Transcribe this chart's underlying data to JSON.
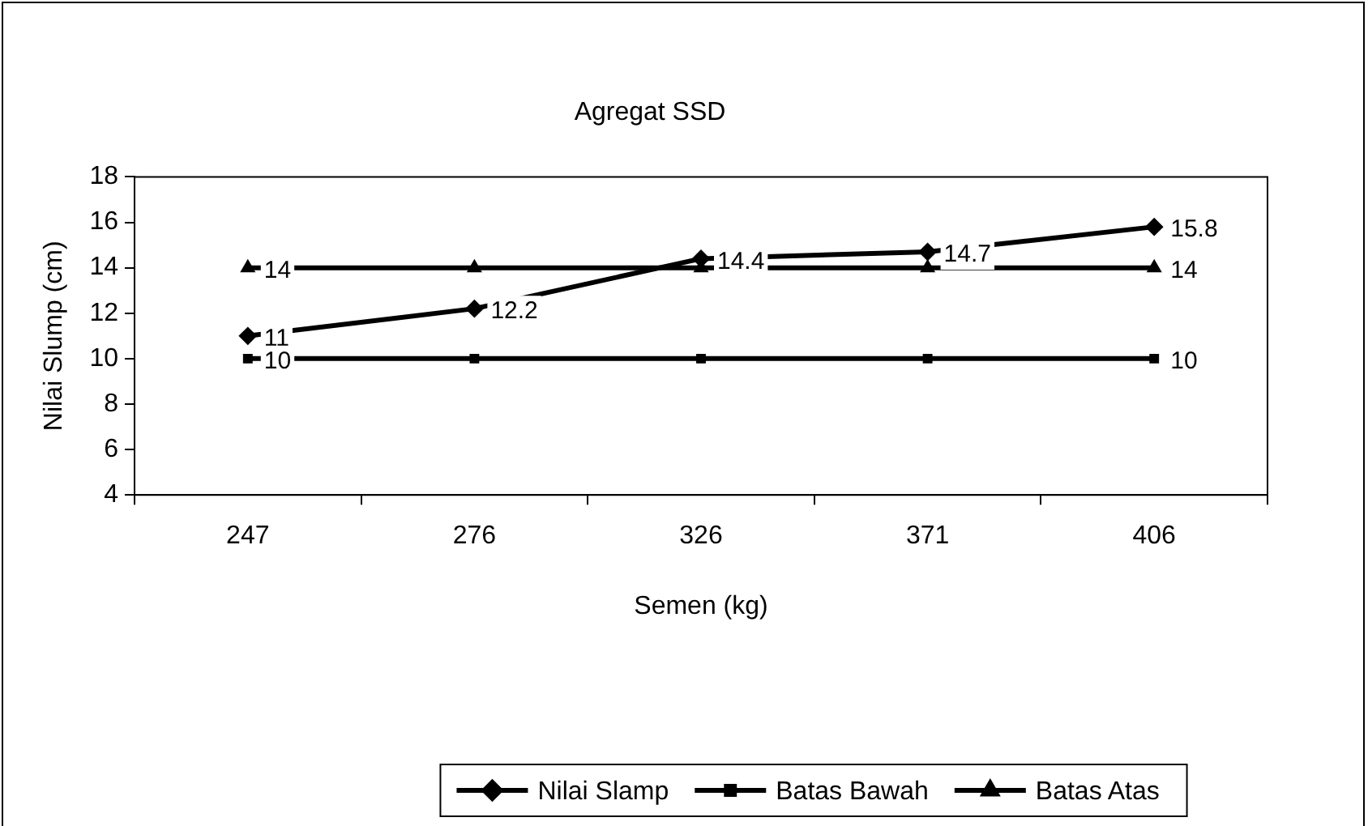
{
  "chart_data": {
    "type": "line",
    "title": "Agregat SSD",
    "xlabel": "Semen (kg)",
    "ylabel": "Nilai Slump (cm)",
    "categories": [
      "247",
      "276",
      "326",
      "371",
      "406"
    ],
    "ylim": [
      4,
      18
    ],
    "yticks": [
      4,
      6,
      8,
      10,
      12,
      14,
      16,
      18
    ],
    "grid": false,
    "legend": "bottom",
    "line_style": "solid",
    "series": [
      {
        "name": "Nilai Slamp",
        "color": "#000000",
        "marker": "diamond",
        "values": [
          11,
          12.2,
          14.4,
          14.7,
          15.8
        ],
        "value_labels": [
          "11",
          "12.2",
          "14.4",
          "14.7",
          "15.8"
        ]
      },
      {
        "name": "Batas Bawah",
        "color": "#000000",
        "marker": "square",
        "values": [
          10,
          10,
          10,
          10,
          10
        ],
        "value_labels": [
          "10",
          null,
          null,
          null,
          "10"
        ]
      },
      {
        "name": "Batas Atas",
        "color": "#000000",
        "marker": "triangle",
        "values": [
          14,
          14,
          14,
          14,
          14
        ],
        "value_labels": [
          "14",
          null,
          null,
          null,
          "14"
        ]
      }
    ]
  }
}
